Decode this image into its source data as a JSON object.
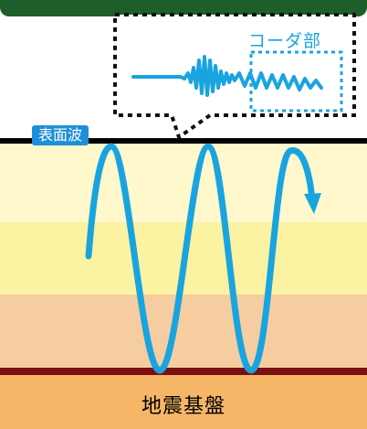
{
  "labels": {
    "surface_wave": "表面波",
    "coda_part": "コーダ部",
    "bedrock": "地震基盤"
  },
  "colors": {
    "top_band": "#1e5e2a",
    "layer_1": "#fff8cc",
    "layer_2": "#fbf3a2",
    "layer_3": "#f6cda0",
    "layer_4": "#f5b668",
    "bedrock_line": "#7a1010",
    "surface_line": "#000000",
    "wave": "#19a4e0",
    "callout_border": "#111111",
    "tag_bg": "#1e8fd8"
  },
  "icons": {
    "wave_arrow": "arrowhead"
  }
}
